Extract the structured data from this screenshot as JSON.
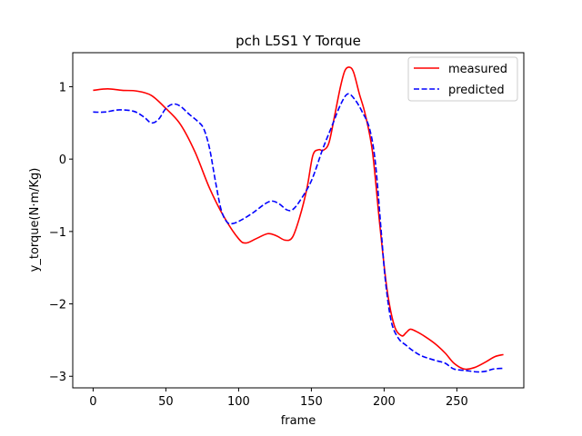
{
  "chart_data": {
    "type": "line",
    "title": "pch L5S1 Y Torque",
    "xlabel": "frame",
    "ylabel": "y_torque(N·m/Kg)",
    "xlim": [
      -14,
      296
    ],
    "ylim": [
      -3.16,
      1.47
    ],
    "x_ticks": [
      0,
      50,
      100,
      150,
      200,
      250
    ],
    "x_tick_labels": [
      "0",
      "50",
      "100",
      "150",
      "200",
      "250"
    ],
    "y_ticks": [
      1,
      0,
      -1,
      -2,
      -3
    ],
    "y_tick_labels": [
      "1",
      "0",
      "−1",
      "−2",
      "−3"
    ],
    "grid": false,
    "legend_position": "top-right",
    "series": [
      {
        "name": "measured",
        "color": "#ff0000",
        "style": "solid",
        "points": [
          [
            0,
            0.95
          ],
          [
            10,
            0.97
          ],
          [
            20,
            0.95
          ],
          [
            30,
            0.94
          ],
          [
            40,
            0.88
          ],
          [
            50,
            0.7
          ],
          [
            60,
            0.48
          ],
          [
            70,
            0.1
          ],
          [
            80,
            -0.4
          ],
          [
            90,
            -0.8
          ],
          [
            100,
            -1.1
          ],
          [
            105,
            -1.16
          ],
          [
            112,
            -1.1
          ],
          [
            120,
            -1.03
          ],
          [
            126,
            -1.06
          ],
          [
            132,
            -1.12
          ],
          [
            137,
            -1.08
          ],
          [
            142,
            -0.8
          ],
          [
            147,
            -0.4
          ],
          [
            151,
            0.05
          ],
          [
            155,
            0.13
          ],
          [
            158,
            0.12
          ],
          [
            162,
            0.22
          ],
          [
            166,
            0.6
          ],
          [
            170,
            1.0
          ],
          [
            173,
            1.22
          ],
          [
            176,
            1.27
          ],
          [
            179,
            1.2
          ],
          [
            183,
            0.9
          ],
          [
            187,
            0.62
          ],
          [
            192,
            0.1
          ],
          [
            197,
            -0.9
          ],
          [
            202,
            -1.8
          ],
          [
            207,
            -2.3
          ],
          [
            212,
            -2.44
          ],
          [
            215,
            -2.4
          ],
          [
            218,
            -2.35
          ],
          [
            222,
            -2.38
          ],
          [
            228,
            -2.45
          ],
          [
            235,
            -2.55
          ],
          [
            242,
            -2.68
          ],
          [
            248,
            -2.82
          ],
          [
            255,
            -2.9
          ],
          [
            262,
            -2.88
          ],
          [
            270,
            -2.8
          ],
          [
            276,
            -2.73
          ],
          [
            282,
            -2.7
          ]
        ]
      },
      {
        "name": "predicted",
        "color": "#0000ff",
        "style": "dashed",
        "points": [
          [
            0,
            0.65
          ],
          [
            8,
            0.65
          ],
          [
            18,
            0.68
          ],
          [
            28,
            0.66
          ],
          [
            35,
            0.58
          ],
          [
            40,
            0.5
          ],
          [
            45,
            0.55
          ],
          [
            50,
            0.7
          ],
          [
            55,
            0.76
          ],
          [
            60,
            0.73
          ],
          [
            66,
            0.62
          ],
          [
            72,
            0.52
          ],
          [
            76,
            0.42
          ],
          [
            80,
            0.15
          ],
          [
            84,
            -0.3
          ],
          [
            88,
            -0.7
          ],
          [
            92,
            -0.87
          ],
          [
            96,
            -0.89
          ],
          [
            102,
            -0.84
          ],
          [
            110,
            -0.74
          ],
          [
            118,
            -0.62
          ],
          [
            123,
            -0.58
          ],
          [
            128,
            -0.62
          ],
          [
            133,
            -0.7
          ],
          [
            137,
            -0.7
          ],
          [
            142,
            -0.58
          ],
          [
            150,
            -0.3
          ],
          [
            158,
            0.15
          ],
          [
            164,
            0.45
          ],
          [
            170,
            0.75
          ],
          [
            175,
            0.9
          ],
          [
            180,
            0.82
          ],
          [
            185,
            0.65
          ],
          [
            190,
            0.42
          ],
          [
            194,
            -0.05
          ],
          [
            198,
            -1.0
          ],
          [
            201,
            -1.7
          ],
          [
            205,
            -2.25
          ],
          [
            210,
            -2.48
          ],
          [
            215,
            -2.57
          ],
          [
            220,
            -2.65
          ],
          [
            226,
            -2.72
          ],
          [
            235,
            -2.78
          ],
          [
            242,
            -2.82
          ],
          [
            248,
            -2.9
          ],
          [
            256,
            -2.92
          ],
          [
            264,
            -2.94
          ],
          [
            270,
            -2.93
          ],
          [
            275,
            -2.9
          ],
          [
            282,
            -2.89
          ]
        ]
      }
    ]
  }
}
